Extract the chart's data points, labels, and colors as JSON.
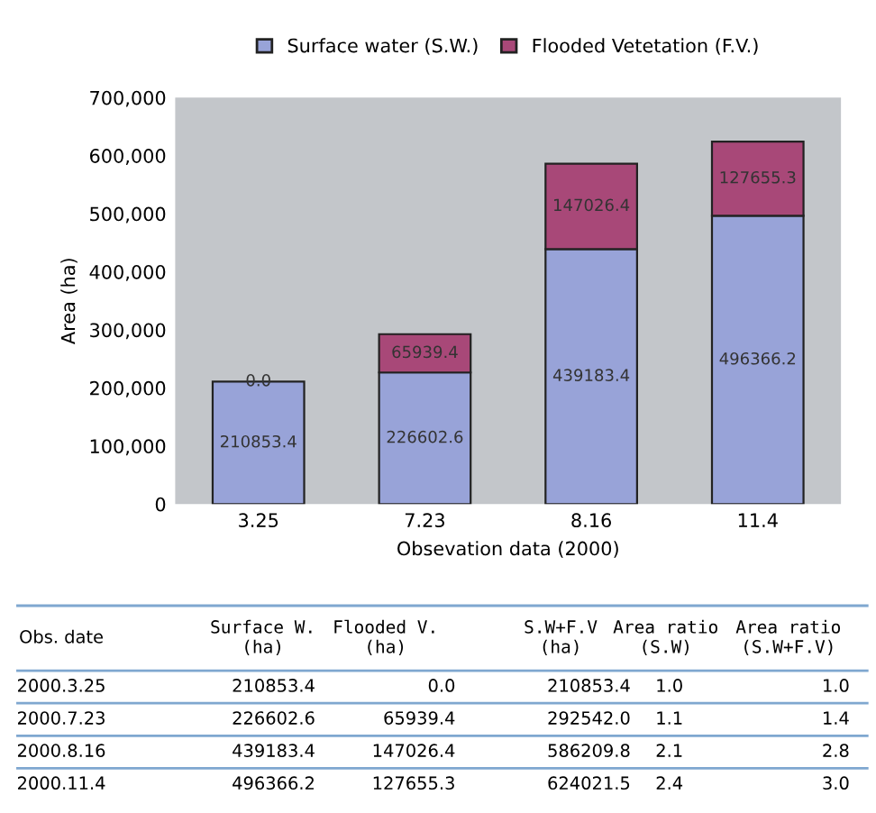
{
  "chart_data": [
    {
      "type": "bar",
      "stacked": true,
      "xlabel": "Obsevation data (2000)",
      "ylabel": "Area (ha)",
      "categories": [
        "3.25",
        "7.23",
        "8.16",
        "11.4"
      ],
      "series": [
        {
          "name": "Surface water (S.W.)",
          "color": "#98a3d8",
          "values": [
            210853.4,
            226602.6,
            439183.4,
            496366.2
          ],
          "value_labels": [
            "210853.4",
            "226602.6",
            "439183.4",
            "496366.2"
          ]
        },
        {
          "name": "Flooded Vetetation (F.V.)",
          "color": "#a84878",
          "values": [
            0.0,
            65939.4,
            147026.4,
            127655.3
          ],
          "value_labels": [
            "0.0",
            "65939.4",
            "147026.4",
            "127655.3"
          ]
        }
      ],
      "ylim": [
        0,
        700000
      ],
      "yticks": [
        {
          "value": 0,
          "label": "0"
        },
        {
          "value": 100000,
          "label": "100,000"
        },
        {
          "value": 200000,
          "label": "200,000"
        },
        {
          "value": 300000,
          "label": "300,000"
        },
        {
          "value": 400000,
          "label": "400,000"
        },
        {
          "value": 500000,
          "label": "500,000"
        },
        {
          "value": 600000,
          "label": "600,000"
        },
        {
          "value": 700000,
          "label": "700,000"
        }
      ],
      "grid": false,
      "legend": "top"
    },
    {
      "type": "other",
      "annotations": [
        "Obs. date",
        "Surface W.\n(ha)",
        "Flooded V.\n(ha)",
        "S.W+F.V\n(ha)",
        "Area ratio\n(S.W)",
        "Area ratio\n(S.W+F.V)",
        "2000.3.25",
        "210853.4",
        "0.0",
        "210853.4",
        "1.0",
        "1.0",
        "2000.7.23",
        "226602.6",
        "65939.4",
        "292542.0",
        "1.1",
        "1.4",
        "2000.8.16",
        "439183.4",
        "147026.4",
        "586209.8",
        "2.1",
        "2.8",
        "2000.11.4",
        "496366.2",
        "127655.3",
        "624021.5",
        "2.4",
        "3.0"
      ]
    }
  ]
}
